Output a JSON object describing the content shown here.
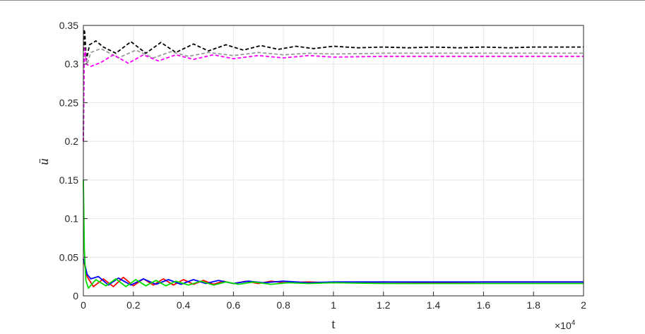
{
  "chart_data": {
    "type": "line",
    "title": "",
    "xlabel": "t",
    "ylabel": "ū",
    "x_exponent_label": "×10",
    "x_exponent_power": "4",
    "xlim": [
      0,
      2
    ],
    "ylim": [
      0,
      0.35
    ],
    "x_ticks": [
      0,
      0.2,
      0.4,
      0.6,
      0.8,
      1,
      1.2,
      1.4,
      1.6,
      1.8,
      2
    ],
    "x_tick_labels": [
      "0",
      "0.2",
      "0.4",
      "0.6",
      "0.8",
      "1",
      "1.2",
      "1.4",
      "1.6",
      "1.8",
      "2"
    ],
    "y_ticks": [
      0,
      0.05,
      0.1,
      0.15,
      0.2,
      0.25,
      0.3,
      0.35
    ],
    "y_tick_labels": [
      "0",
      "0.05",
      "0.1",
      "0.15",
      "0.2",
      "0.25",
      "0.3",
      "0.35"
    ],
    "grid": true,
    "legend": "none",
    "series": [
      {
        "color": "#000000",
        "style": "dashed",
        "x": [
          0,
          0.003,
          0.006,
          0.012,
          0.025,
          0.05,
          0.08,
          0.13,
          0.19,
          0.25,
          0.31,
          0.37,
          0.44,
          0.5,
          0.57,
          0.64,
          0.71,
          0.78,
          0.85,
          0.92,
          1.0,
          1.1,
          1.2,
          1.3,
          1.4,
          1.5,
          1.6,
          1.7,
          1.8,
          1.9,
          2.0
        ],
        "y": [
          0.2,
          0.345,
          0.34,
          0.305,
          0.325,
          0.33,
          0.322,
          0.314,
          0.329,
          0.314,
          0.328,
          0.315,
          0.326,
          0.317,
          0.325,
          0.318,
          0.324,
          0.319,
          0.323,
          0.32,
          0.323,
          0.321,
          0.322,
          0.321,
          0.322,
          0.321,
          0.322,
          0.321,
          0.322,
          0.322,
          0.322
        ]
      },
      {
        "color": "#999999",
        "style": "dashed",
        "x": [
          0,
          0.004,
          0.008,
          0.015,
          0.03,
          0.07,
          0.14,
          0.21,
          0.28,
          0.35,
          0.42,
          0.5,
          0.6,
          0.7,
          0.8,
          0.9,
          1.0,
          1.2,
          1.4,
          1.6,
          1.8,
          2.0
        ],
        "y": [
          0.2,
          0.315,
          0.31,
          0.3,
          0.315,
          0.32,
          0.308,
          0.318,
          0.308,
          0.316,
          0.31,
          0.315,
          0.311,
          0.315,
          0.312,
          0.314,
          0.313,
          0.314,
          0.314,
          0.314,
          0.314,
          0.314
        ]
      },
      {
        "color": "#ff00ff",
        "style": "dashed",
        "x": [
          0,
          0.003,
          0.006,
          0.012,
          0.03,
          0.07,
          0.12,
          0.18,
          0.24,
          0.3,
          0.37,
          0.44,
          0.52,
          0.6,
          0.7,
          0.8,
          0.9,
          1.0,
          1.2,
          1.4,
          1.6,
          1.8,
          2.0
        ],
        "y": [
          0.2,
          0.3,
          0.32,
          0.3,
          0.297,
          0.302,
          0.312,
          0.301,
          0.312,
          0.304,
          0.312,
          0.306,
          0.312,
          0.307,
          0.311,
          0.308,
          0.311,
          0.309,
          0.31,
          0.31,
          0.31,
          0.31,
          0.31
        ]
      },
      {
        "color": "#ff0000",
        "style": "solid",
        "x": [
          0,
          0.005,
          0.015,
          0.04,
          0.08,
          0.12,
          0.16,
          0.2,
          0.24,
          0.28,
          0.32,
          0.36,
          0.4,
          0.44,
          0.48,
          0.52,
          0.56,
          0.6,
          0.65,
          0.7,
          0.75,
          0.8,
          0.9,
          1.0,
          1.2,
          1.4,
          1.6,
          1.8,
          2.0
        ],
        "y": [
          0.048,
          0.04,
          0.025,
          0.012,
          0.022,
          0.012,
          0.024,
          0.013,
          0.022,
          0.014,
          0.022,
          0.014,
          0.021,
          0.015,
          0.02,
          0.015,
          0.019,
          0.016,
          0.019,
          0.016,
          0.019,
          0.017,
          0.018,
          0.017,
          0.018,
          0.017,
          0.018,
          0.018,
          0.018
        ]
      },
      {
        "color": "#0000ff",
        "style": "solid",
        "x": [
          0,
          0.005,
          0.015,
          0.03,
          0.06,
          0.1,
          0.14,
          0.19,
          0.24,
          0.29,
          0.34,
          0.39,
          0.44,
          0.49,
          0.54,
          0.6,
          0.66,
          0.72,
          0.8,
          0.9,
          1.0,
          1.2,
          1.4,
          1.6,
          1.8,
          2.0
        ],
        "y": [
          0.048,
          0.042,
          0.028,
          0.022,
          0.025,
          0.014,
          0.023,
          0.014,
          0.022,
          0.015,
          0.021,
          0.015,
          0.021,
          0.016,
          0.02,
          0.016,
          0.019,
          0.017,
          0.019,
          0.017,
          0.018,
          0.018,
          0.018,
          0.018,
          0.018,
          0.018
        ]
      },
      {
        "color": "#00dd00",
        "style": "solid",
        "x": [
          0,
          0.004,
          0.01,
          0.02,
          0.05,
          0.09,
          0.13,
          0.17,
          0.21,
          0.25,
          0.29,
          0.33,
          0.37,
          0.42,
          0.47,
          0.52,
          0.57,
          0.62,
          0.68,
          0.75,
          0.82,
          0.9,
          1.0,
          1.2,
          1.4,
          1.6,
          1.8,
          2.0
        ],
        "y": [
          0.15,
          0.06,
          0.02,
          0.01,
          0.021,
          0.013,
          0.022,
          0.012,
          0.021,
          0.013,
          0.02,
          0.013,
          0.019,
          0.014,
          0.019,
          0.014,
          0.018,
          0.015,
          0.018,
          0.015,
          0.017,
          0.016,
          0.017,
          0.016,
          0.016,
          0.016,
          0.016,
          0.016
        ]
      }
    ]
  }
}
